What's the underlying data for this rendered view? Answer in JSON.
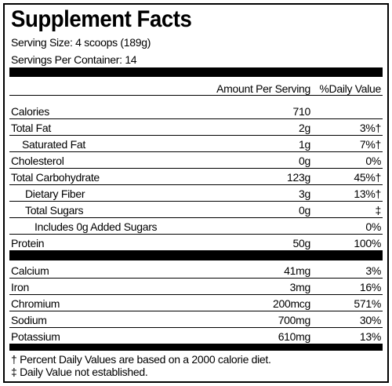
{
  "header": {
    "title": "Supplement Facts",
    "serving_size": "Serving Size: 4 scoops (189g)",
    "servings_per_container": "Servings Per Container: 14"
  },
  "table": {
    "columns": [
      "Amount Per Serving",
      "%Daily Value"
    ],
    "rows": [
      {
        "label": "Calories",
        "amount": "710"
      },
      {
        "label": "Total Fat",
        "amount": "2g",
        "daily_value": "3%†"
      },
      {
        "label": "Saturated Fat",
        "amount": "1g",
        "daily_value": "7%†"
      },
      {
        "label": "Cholesterol",
        "amount": "0g",
        "daily_value": "0%"
      },
      {
        "label": "Total Carbohydrate",
        "amount": "123g",
        "daily_value": "45%†"
      },
      {
        "label": "Dietary Fiber",
        "amount": "3g",
        "daily_value": "13%†"
      },
      {
        "label": "Total Sugars",
        "amount": "0g",
        "daily_value": "‡"
      },
      {
        "label": "Includes 0g Added Sugars",
        "daily_value": "0%"
      },
      {
        "label": "Protein",
        "amount": "50g",
        "daily_value": "100%"
      }
    ],
    "minerals": [
      {
        "label": "Calcium",
        "amount": "41mg",
        "daily_value": "3%"
      },
      {
        "label": "Iron",
        "amount": "3mg",
        "daily_value": "16%"
      },
      {
        "label": "Chromium",
        "amount": "200mcg",
        "daily_value": "571%"
      },
      {
        "label": "Sodium",
        "amount": "700mg",
        "daily_value": "30%"
      },
      {
        "label": "Potassium",
        "amount": "610mg",
        "daily_value": "13%"
      }
    ]
  },
  "footnotes": [
    "† Percent Daily Values are based on a 2000 calorie diet.",
    "‡ Daily Value not established."
  ]
}
